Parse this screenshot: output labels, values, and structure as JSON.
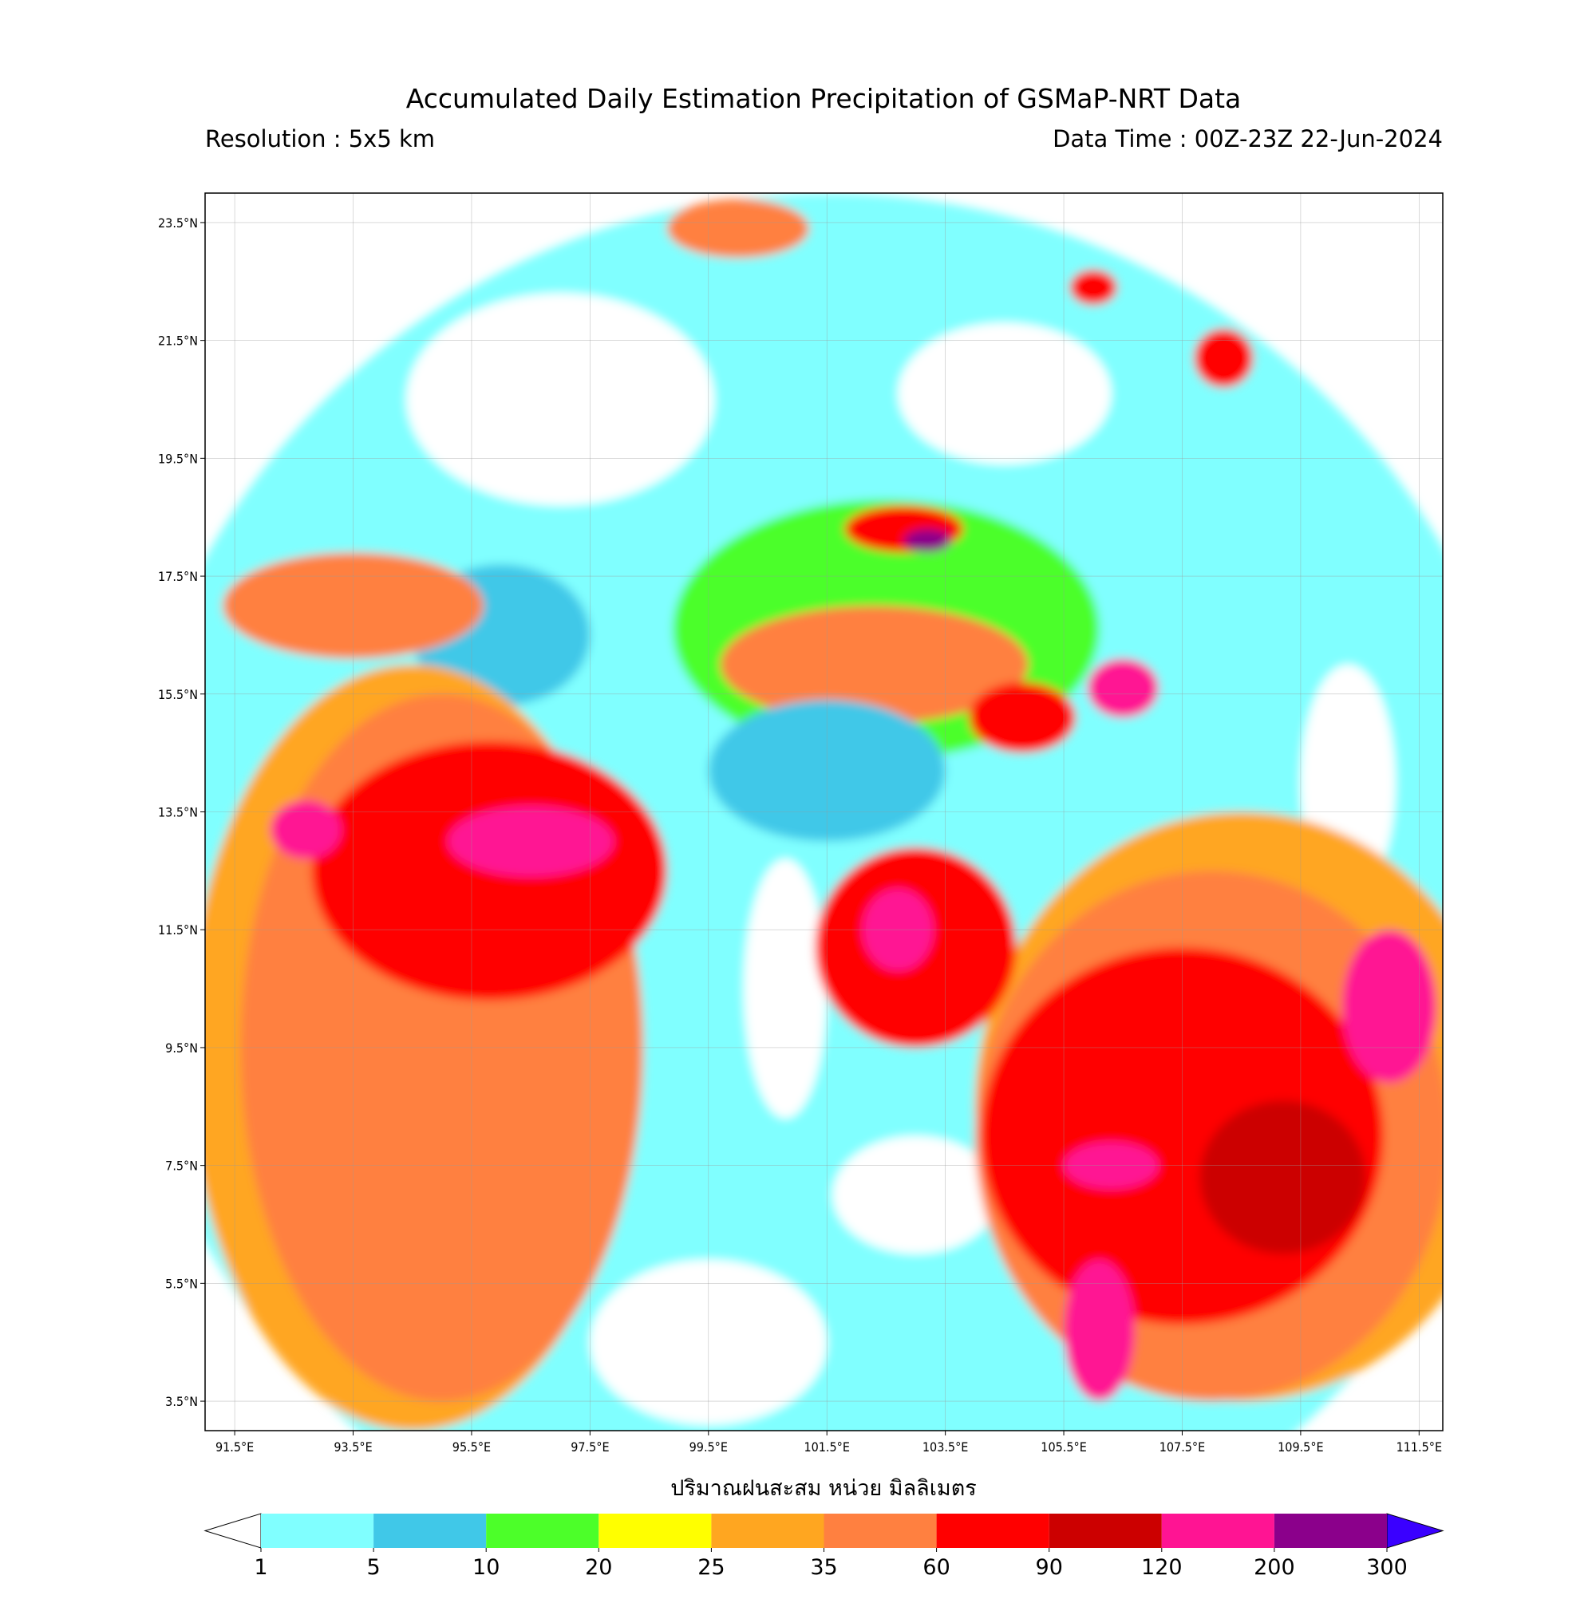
{
  "title": "Accumulated Daily Estimation Precipitation of GSMaP-NRT Data",
  "resolution": "Resolution : 5x5 km",
  "data_time": "Data Time : 00Z-23Z 22-Jun-2024",
  "map": {
    "lonlim": [
      91.0,
      111.9
    ],
    "latlim": [
      3.0,
      24.0
    ],
    "lon_ticks": [
      {
        "value": 91.5,
        "label": "91.5°E"
      },
      {
        "value": 93.5,
        "label": "93.5°E"
      },
      {
        "value": 95.5,
        "label": "95.5°E"
      },
      {
        "value": 97.5,
        "label": "97.5°E"
      },
      {
        "value": 99.5,
        "label": "99.5°E"
      },
      {
        "value": 101.5,
        "label": "101.5°E"
      },
      {
        "value": 103.5,
        "label": "103.5°E"
      },
      {
        "value": 105.5,
        "label": "105.5°E"
      },
      {
        "value": 107.5,
        "label": "107.5°E"
      },
      {
        "value": 109.5,
        "label": "109.5°E"
      },
      {
        "value": 111.5,
        "label": "111.5°E"
      }
    ],
    "lat_ticks": [
      {
        "value": 23.5,
        "label": "23.5°N"
      },
      {
        "value": 21.5,
        "label": "21.5°N"
      },
      {
        "value": 19.5,
        "label": "19.5°N"
      },
      {
        "value": 17.5,
        "label": "17.5°N"
      },
      {
        "value": 15.5,
        "label": "15.5°N"
      },
      {
        "value": 13.5,
        "label": "13.5°N"
      },
      {
        "value": 11.5,
        "label": "11.5°N"
      },
      {
        "value": 9.5,
        "label": "9.5°N"
      },
      {
        "value": 7.5,
        "label": "7.5°N"
      },
      {
        "value": 5.5,
        "label": "5.5°N"
      },
      {
        "value": 3.5,
        "label": "3.5°N"
      }
    ]
  },
  "colorbar": {
    "title": "ปริมาณฝนสะสม หน่วย มิลลิเมตร",
    "levels": [
      1,
      5,
      10,
      20,
      25,
      35,
      60,
      90,
      120,
      200,
      300
    ],
    "colors": [
      "#80ffff",
      "#40c8e8",
      "#4cff29",
      "#ffff00",
      "#ffa620",
      "#ff8040",
      "#ff0000",
      "#cc0000",
      "#ff1493",
      "#8b008b"
    ],
    "under_color": "#ffffff",
    "over_color": "#3a00ff"
  }
}
